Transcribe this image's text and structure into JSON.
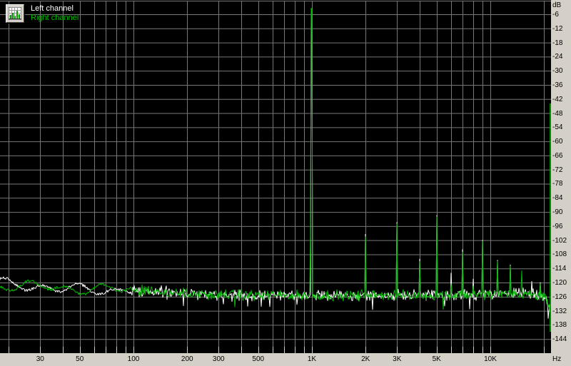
{
  "legend": {
    "left_label": "Left channel",
    "right_label": "Right channel"
  },
  "colors": {
    "background": "#000000",
    "grid": "#777777",
    "tick": "#cccccc",
    "strip_background": "#d4d0c8",
    "strip_text": "#000000",
    "left_channel": "#ffffff",
    "right_channel": "#00bc00"
  },
  "y_axis": {
    "unit_label": "dB",
    "labels": [
      {
        "text": "-6",
        "db": -6
      },
      {
        "text": "-12",
        "db": -12
      },
      {
        "text": "-18",
        "db": -18
      },
      {
        "text": "-24",
        "db": -24
      },
      {
        "text": "-30",
        "db": -30
      },
      {
        "text": "-36",
        "db": -36
      },
      {
        "text": "-42",
        "db": -42
      },
      {
        "text": "-48",
        "db": -48
      },
      {
        "text": "-54",
        "db": -54
      },
      {
        "text": "-60",
        "db": -60
      },
      {
        "text": "-66",
        "db": -66
      },
      {
        "text": "-72",
        "db": -72
      },
      {
        "text": "-78",
        "db": -78
      },
      {
        "text": "-84",
        "db": -84
      },
      {
        "text": "-90",
        "db": -90
      },
      {
        "text": "-96",
        "db": -96
      },
      {
        "text": "-102",
        "db": -102
      },
      {
        "text": "-108",
        "db": -108
      },
      {
        "text": "-114",
        "db": -114
      },
      {
        "text": "-120",
        "db": -120
      },
      {
        "text": "-126",
        "db": -126
      },
      {
        "text": "-132",
        "db": -132
      },
      {
        "text": "-138",
        "db": -138
      },
      {
        "text": "-144",
        "db": -144
      }
    ]
  },
  "x_axis": {
    "unit_label": "Hz",
    "labels": [
      {
        "text": "30",
        "hz": 30
      },
      {
        "text": "50",
        "hz": 50
      },
      {
        "text": "100",
        "hz": 100
      },
      {
        "text": "200",
        "hz": 200
      },
      {
        "text": "300",
        "hz": 300
      },
      {
        "text": "500",
        "hz": 500
      },
      {
        "text": "1K",
        "hz": 1000
      },
      {
        "text": "2K",
        "hz": 2000
      },
      {
        "text": "3K",
        "hz": 3000
      },
      {
        "text": "5K",
        "hz": 5000
      },
      {
        "text": "10K",
        "hz": 10000
      }
    ]
  },
  "grid": {
    "vertical_hz": [
      20,
      30,
      40,
      50,
      60,
      70,
      80,
      90,
      100,
      200,
      300,
      400,
      500,
      600,
      700,
      800,
      900,
      1000,
      2000,
      3000,
      4000,
      5000,
      6000,
      7000,
      8000,
      9000,
      10000,
      20000
    ],
    "horizontal_db_from": 0,
    "horizontal_db_to": -144,
    "horizontal_step_db": 6
  },
  "chart_data": {
    "type": "line",
    "x_scale": "log",
    "x_range_hz": [
      18,
      22050
    ],
    "y_range_db": [
      -150,
      0
    ],
    "grid": true,
    "legend_position": "top-left",
    "series": [
      {
        "name": "Left channel",
        "color": "#ffffff",
        "noise_floor_hz_db": [
          [
            18,
            -119.8
          ],
          [
            22,
            -120.5
          ],
          [
            30,
            -122.0
          ],
          [
            40,
            -123.2
          ],
          [
            55,
            -122.3
          ],
          [
            70,
            -123.5
          ],
          [
            90,
            -123.0
          ],
          [
            120,
            -124.0
          ],
          [
            160,
            -123.8
          ],
          [
            200,
            -125.0
          ],
          [
            300,
            -125.2
          ],
          [
            500,
            -125.4
          ],
          [
            800,
            -125.3
          ],
          [
            1500,
            -125.5
          ],
          [
            3000,
            -125.4
          ],
          [
            6000,
            -125.2
          ],
          [
            10000,
            -124.8
          ],
          [
            14000,
            -124.6
          ],
          [
            18000,
            -124.9
          ],
          [
            20000,
            -126.0
          ],
          [
            21000,
            -128.5
          ],
          [
            22050,
            -133.0
          ]
        ],
        "peaks_hz_db": [
          [
            1000,
            -4.5
          ],
          [
            2000,
            -99.5
          ],
          [
            3000,
            -94.5
          ],
          [
            4000,
            -110.0
          ],
          [
            5000,
            -91.5
          ],
          [
            6000,
            -116.0
          ],
          [
            7000,
            -106.0
          ],
          [
            8000,
            -118.5
          ],
          [
            9000,
            -102.0
          ],
          [
            11000,
            -110.5
          ],
          [
            13000,
            -112.5
          ],
          [
            17000,
            -119.5
          ],
          [
            19000,
            -120.0
          ]
        ]
      },
      {
        "name": "Right channel",
        "color": "#00bc00",
        "noise_floor_hz_db": [
          [
            18,
            -121.5
          ],
          [
            25,
            -121.0
          ],
          [
            35,
            -122.5
          ],
          [
            50,
            -122.8
          ],
          [
            65,
            -122.2
          ],
          [
            85,
            -123.3
          ],
          [
            110,
            -123.2
          ],
          [
            150,
            -124.3
          ],
          [
            250,
            -125.0
          ],
          [
            400,
            -125.3
          ],
          [
            700,
            -125.4
          ],
          [
            1200,
            -125.5
          ],
          [
            2500,
            -125.4
          ],
          [
            5000,
            -125.3
          ],
          [
            9000,
            -125.0
          ],
          [
            13000,
            -124.7
          ],
          [
            17000,
            -124.9
          ],
          [
            20000,
            -126.5
          ],
          [
            21200,
            -129.0
          ],
          [
            22050,
            -134.0
          ]
        ],
        "peaks_hz_db": [
          [
            980,
            -100.0
          ],
          [
            1000,
            -3.5
          ],
          [
            2000,
            -100.5
          ],
          [
            3000,
            -95.0
          ],
          [
            4000,
            -111.0
          ],
          [
            5000,
            -92.0
          ],
          [
            6000,
            -120.5
          ],
          [
            7000,
            -107.0
          ],
          [
            8000,
            -121.5
          ],
          [
            9000,
            -102.5
          ],
          [
            11000,
            -111.0
          ],
          [
            13000,
            -113.0
          ],
          [
            15000,
            -115.0
          ],
          [
            19000,
            -120.5
          ]
        ]
      }
    ]
  }
}
